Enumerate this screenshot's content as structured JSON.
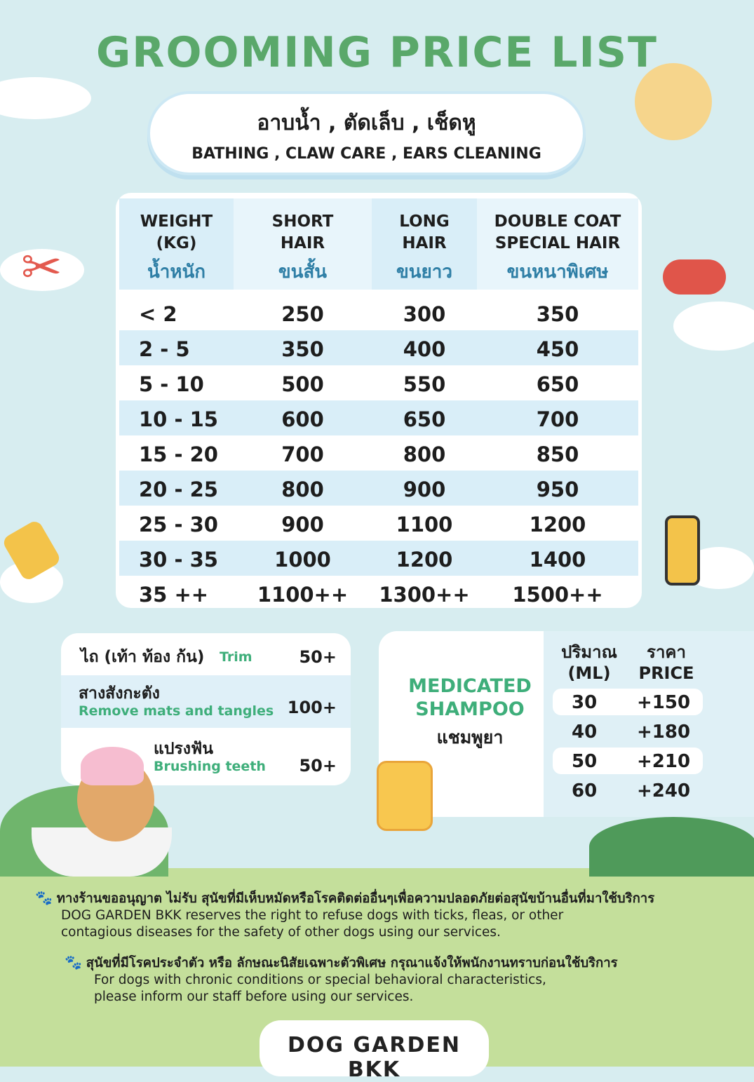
{
  "title": "GROOMING  PRICE LIST",
  "service": {
    "th": "อาบน้ำ , ตัดเล็บ , เช็ดหู",
    "en": "BATHING , CLAW CARE , EARS CLEANING"
  },
  "table": {
    "headers": [
      {
        "en": "WEIGHT\n(KG)",
        "th": "น้ำหนัก"
      },
      {
        "en": "SHORT\nHAIR",
        "th": "ขนสั้น"
      },
      {
        "en": "LONG\nHAIR",
        "th": "ขนยาว"
      },
      {
        "en": "DOUBLE COAT\nSPECIAL HAIR",
        "th": "ขนหนาพิเศษ"
      }
    ],
    "rows": [
      [
        "< 2",
        "250",
        "300",
        "350"
      ],
      [
        "2   -  5",
        "350",
        "400",
        "450"
      ],
      [
        "5   -  10",
        "500",
        "550",
        "650"
      ],
      [
        "10  -  15",
        "600",
        "650",
        "700"
      ],
      [
        "15  -  20",
        "700",
        "800",
        "850"
      ],
      [
        "20 -  25",
        "800",
        "900",
        "950"
      ],
      [
        "25 -  30",
        "900",
        "1100",
        "1200"
      ],
      [
        "30 -  35",
        "1000",
        "1200",
        "1400"
      ],
      [
        "35 ++",
        "1100++",
        "1300++",
        "1500++"
      ]
    ]
  },
  "extras": [
    {
      "th": "ไถ (เท้า ท้อง ก้น)",
      "en": "Trim",
      "price": "50+"
    },
    {
      "th": "สางสังกะตัง",
      "en": "Remove mats and tangles",
      "price": "100+"
    },
    {
      "th": "แปรงฟัน",
      "en": "Brushing teeth",
      "price": "50+"
    }
  ],
  "shampoo": {
    "title_line1": "MEDICATED",
    "title_line2": "SHAMPOO",
    "th": "แชมพูยา",
    "col1_th": "ปริมาณ",
    "col1_en": "(ML)",
    "col2_th": "ราคา",
    "col2_en": "PRICE",
    "rows": [
      [
        "30",
        "+150"
      ],
      [
        "40",
        "+180"
      ],
      [
        "50",
        "+210"
      ],
      [
        "60",
        "+240"
      ]
    ]
  },
  "notes": [
    {
      "th": "ทางร้านขออนุญาต ไม่รับ สุนัขที่มีเห็บหมัดหรือโรคติดต่ออื่นๆเพื่อความปลอดภัยต่อสุนัขบ้านอื่นที่มาใช้บริการ",
      "en1": "DOG GARDEN BKK reserves the right to refuse dogs with ticks, fleas, or other",
      "en2": "contagious diseases for the safety of other dogs using our services."
    },
    {
      "th": "สุนัขที่มีโรคประจำตัว หรือ ลักษณะนิสัยเฉพาะตัวพิเศษ กรุณาแจ้งให้พนักงานทราบก่อนใช้บริการ",
      "en1": "For dogs with chronic conditions or special behavioral characteristics,",
      "en2": "please inform our staff before using our services."
    }
  ],
  "logo": "DOG GARDEN BKK",
  "colors": {
    "title": "#5aa86a",
    "accent_green": "#3eae7a",
    "sky": "#d7edf0",
    "grass": "#c4df9b",
    "row_blue": "#d9eef8"
  }
}
